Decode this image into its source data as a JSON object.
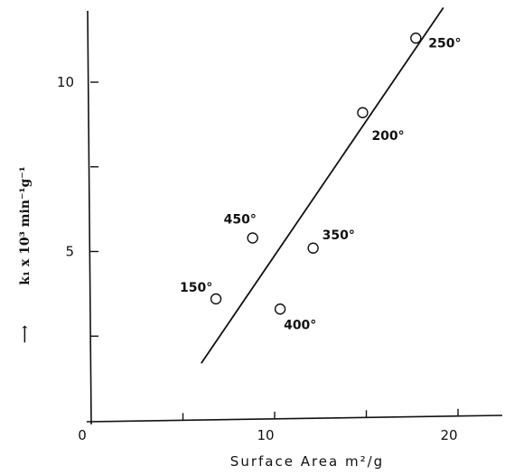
{
  "chart_data": {
    "type": "scatter",
    "xlabel": "Surface Area m²/g",
    "ylabel": "k₁ x 10³ min⁻¹g⁻¹",
    "ylabel_arrow": "⟶",
    "x_ticks": [
      {
        "value": 0,
        "label": "0"
      },
      {
        "value": 10,
        "label": "10"
      },
      {
        "value": 20,
        "label": "20"
      }
    ],
    "y_ticks": [
      {
        "value": 5,
        "label": "5"
      },
      {
        "value": 10,
        "label": "10"
      }
    ],
    "x_minor_ticks": [
      5,
      10,
      15,
      20
    ],
    "y_minor_ticks": [
      2.5,
      5,
      7.5,
      10
    ],
    "xlim": [
      0,
      24
    ],
    "ylim": [
      0,
      12
    ],
    "grid": false,
    "points": [
      {
        "x": 6.8,
        "y": 3.6,
        "label": "150°"
      },
      {
        "x": 17.7,
        "y": 11.3,
        "label": "250°"
      },
      {
        "x": 14.8,
        "y": 9.1,
        "label": "200°"
      },
      {
        "x": 8.8,
        "y": 5.4,
        "label": "450°"
      },
      {
        "x": 12.1,
        "y": 5.1,
        "label": "350°"
      },
      {
        "x": 10.3,
        "y": 3.3,
        "label": "400°"
      }
    ],
    "fit_line": {
      "x1": 6.0,
      "y1": 1.7,
      "x2": 19.2,
      "y2": 12.2
    }
  }
}
